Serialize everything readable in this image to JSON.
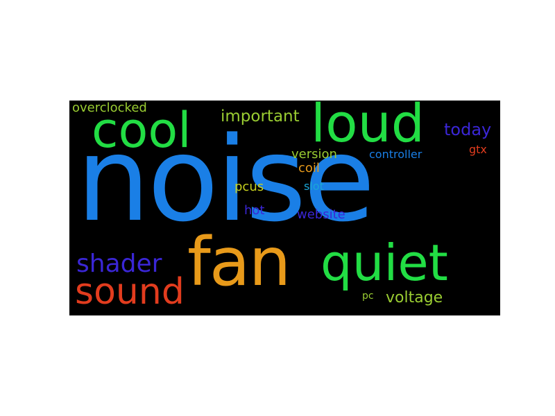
{
  "words": [
    {
      "key": "noise",
      "text": "noise",
      "color": "#1a7fe6"
    },
    {
      "key": "loud",
      "text": "loud",
      "color": "#22dd44"
    },
    {
      "key": "cool",
      "text": "cool",
      "color": "#22dd44"
    },
    {
      "key": "fan",
      "text": "fan",
      "color": "#e89a1a"
    },
    {
      "key": "quiet",
      "text": "quiet",
      "color": "#22dd44"
    },
    {
      "key": "sound",
      "text": "sound",
      "color": "#e23c1e"
    },
    {
      "key": "shader",
      "text": "shader",
      "color": "#3a26d6"
    },
    {
      "key": "important",
      "text": "important",
      "color": "#9acd32"
    },
    {
      "key": "today",
      "text": "today",
      "color": "#3a26d6"
    },
    {
      "key": "overclocked",
      "text": "overclocked",
      "color": "#9acd32"
    },
    {
      "key": "version",
      "text": "version",
      "color": "#9acd32"
    },
    {
      "key": "controller",
      "text": "controller",
      "color": "#1a7fe6"
    },
    {
      "key": "gtx",
      "text": "gtx",
      "color": "#e23c1e"
    },
    {
      "key": "coil",
      "text": "coil",
      "color": "#e89a1a"
    },
    {
      "key": "pcus",
      "text": "pcus",
      "color": "#c8d21e"
    },
    {
      "key": "slot",
      "text": "slot",
      "color": "#1aa6d6"
    },
    {
      "key": "hot",
      "text": "hot",
      "color": "#3a26d6"
    },
    {
      "key": "website",
      "text": "website",
      "color": "#3a26d6"
    },
    {
      "key": "pc",
      "text": "pc",
      "color": "#9acd32"
    },
    {
      "key": "voltage",
      "text": "voltage",
      "color": "#9acd32"
    }
  ],
  "background_color": "#000000"
}
